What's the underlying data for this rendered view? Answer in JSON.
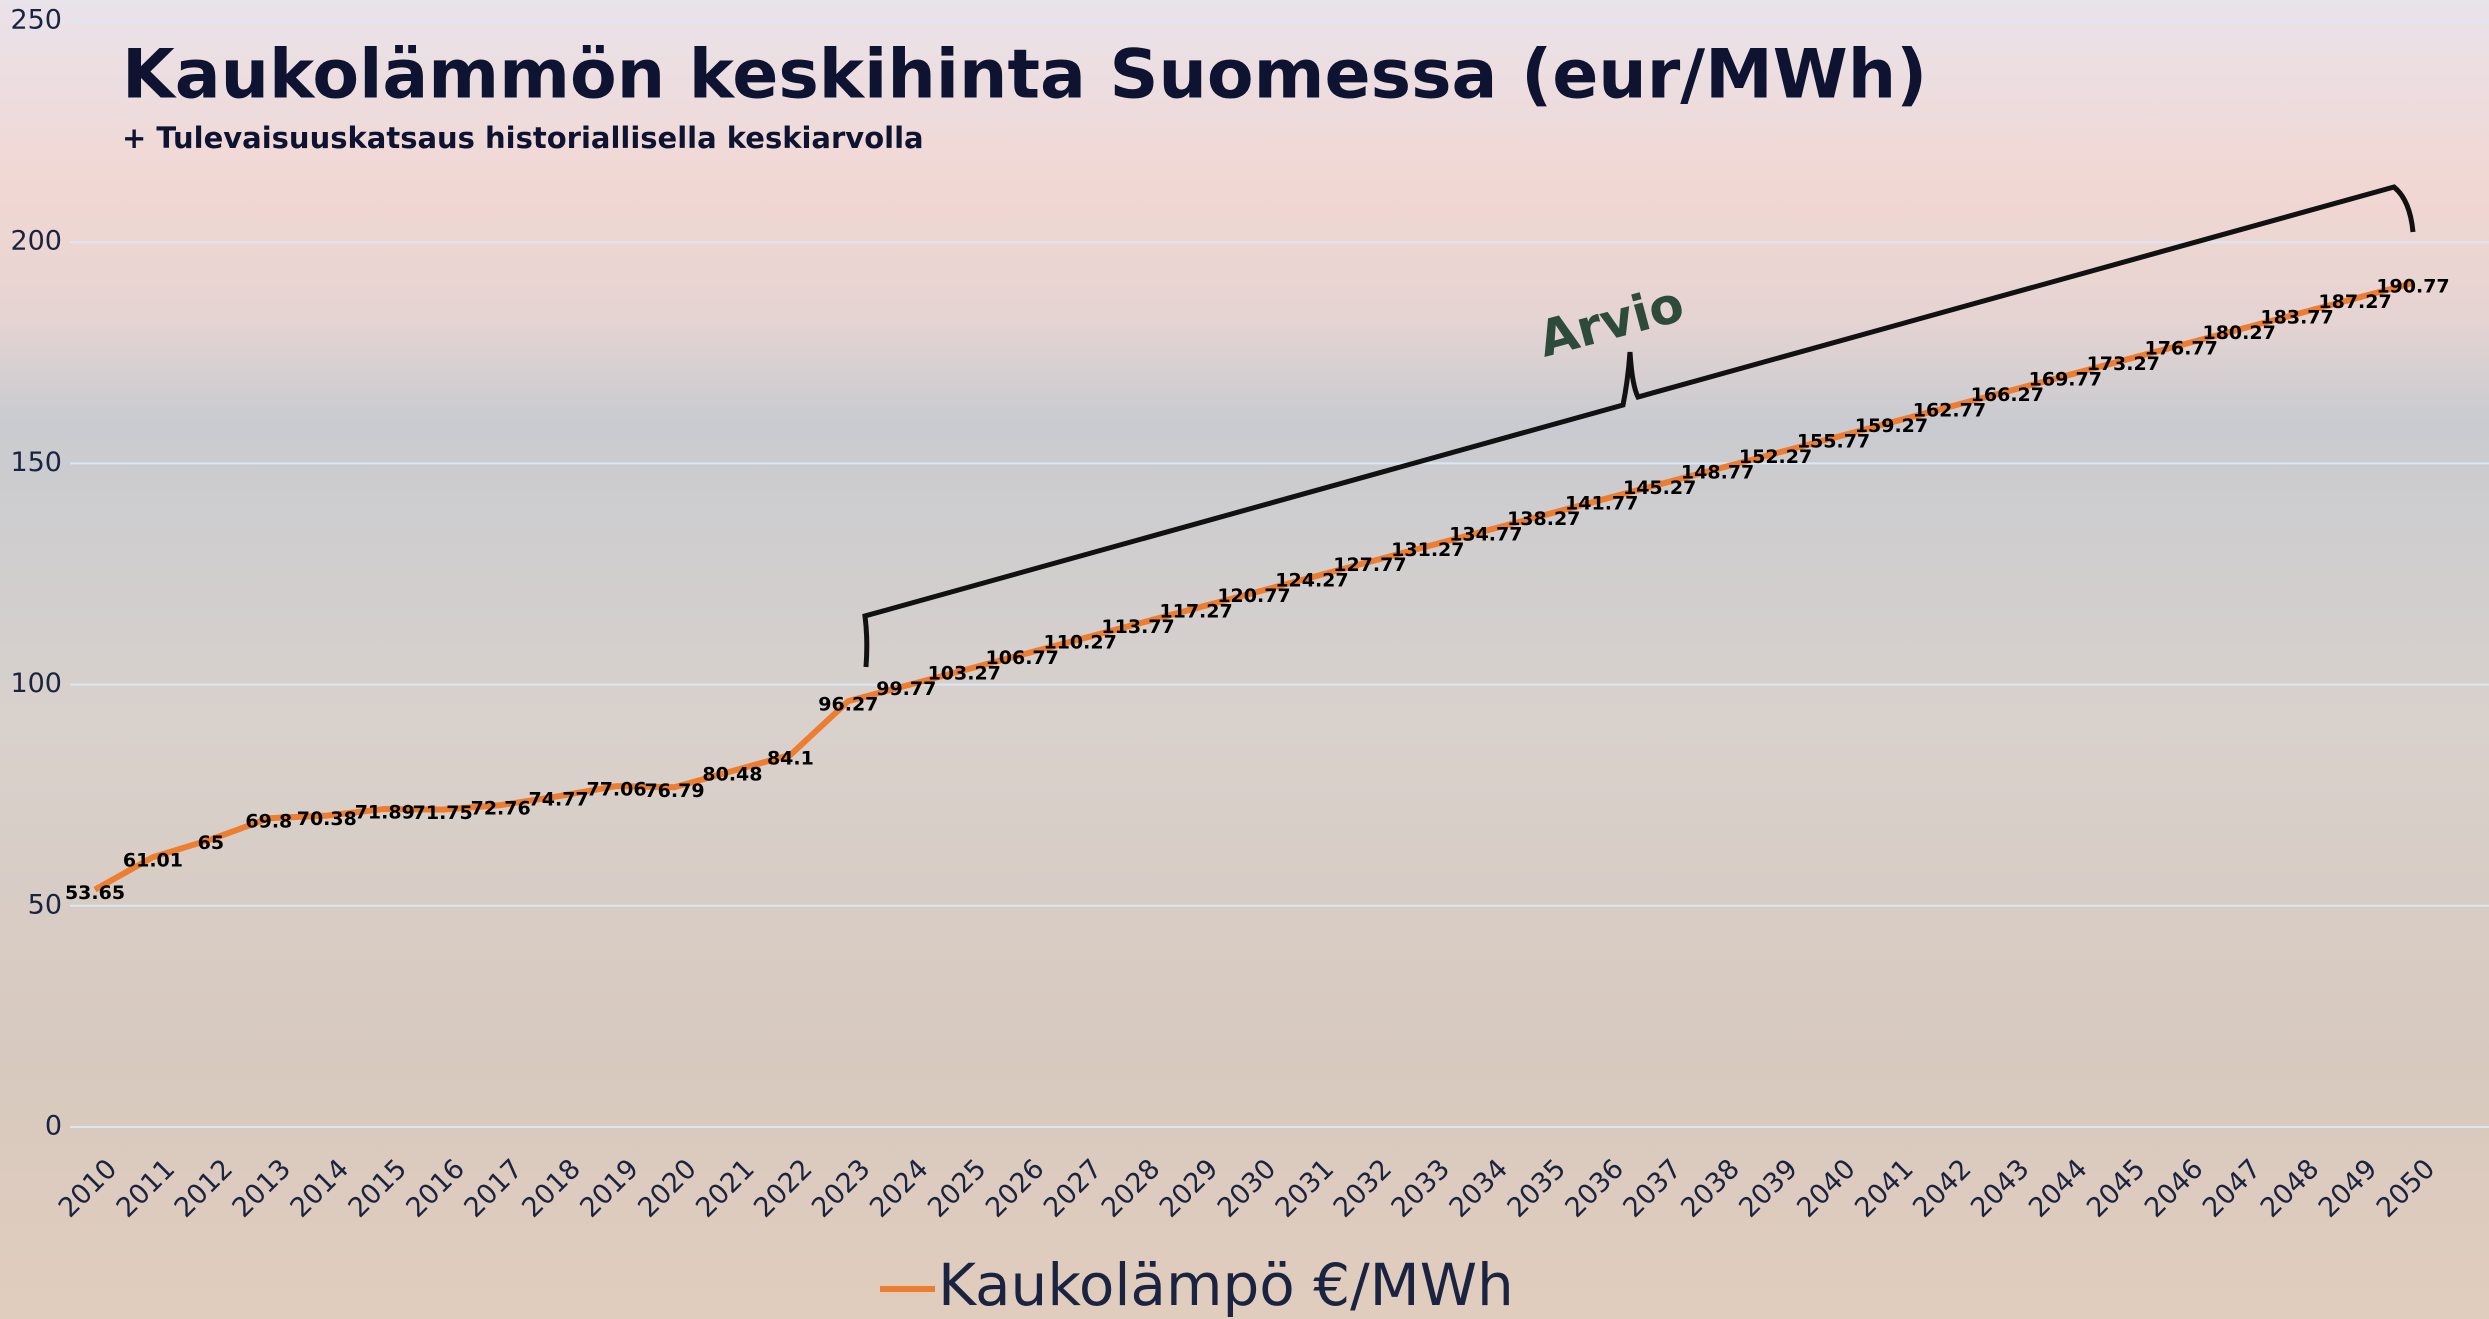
{
  "chart_data": {
    "type": "line",
    "title": "Kaukolämmön keskihinta Suomessa (eur/MWh)",
    "subtitle": "+ Tulevaisuuskatsaus historiallisella keskiarvolla",
    "annotation": "Arvio",
    "categories": [
      "2010",
      "2011",
      "2012",
      "2013",
      "2014",
      "2015",
      "2016",
      "2017",
      "2018",
      "2019",
      "2020",
      "2021",
      "2022",
      "2023",
      "2024",
      "2025",
      "2026",
      "2027",
      "2028",
      "2029",
      "2030",
      "2031",
      "2032",
      "2033",
      "2034",
      "2035",
      "2036",
      "2037",
      "2038",
      "2039",
      "2040",
      "2041",
      "2042",
      "2043",
      "2044",
      "2045",
      "2046",
      "2047",
      "2048",
      "2049",
      "2050"
    ],
    "series": [
      {
        "name": "Kaukolämpö €/MWh",
        "color": "#ed7d31",
        "values": [
          53.65,
          61.01,
          65,
          69.8,
          70.38,
          71.89,
          71.75,
          72.76,
          74.77,
          77.06,
          76.79,
          80.48,
          84.1,
          96.27,
          99.77,
          103.27,
          106.77,
          110.27,
          113.77,
          117.27,
          120.77,
          124.27,
          127.77,
          131.27,
          134.77,
          138.27,
          141.77,
          145.27,
          148.77,
          152.27,
          155.77,
          159.27,
          162.77,
          166.27,
          169.77,
          173.27,
          176.77,
          180.27,
          183.77,
          187.27,
          190.77
        ]
      }
    ],
    "ylim": [
      0,
      250
    ],
    "yticks": [
      0,
      50,
      100,
      150,
      200,
      250
    ],
    "grid": true,
    "legend": "bottom"
  }
}
